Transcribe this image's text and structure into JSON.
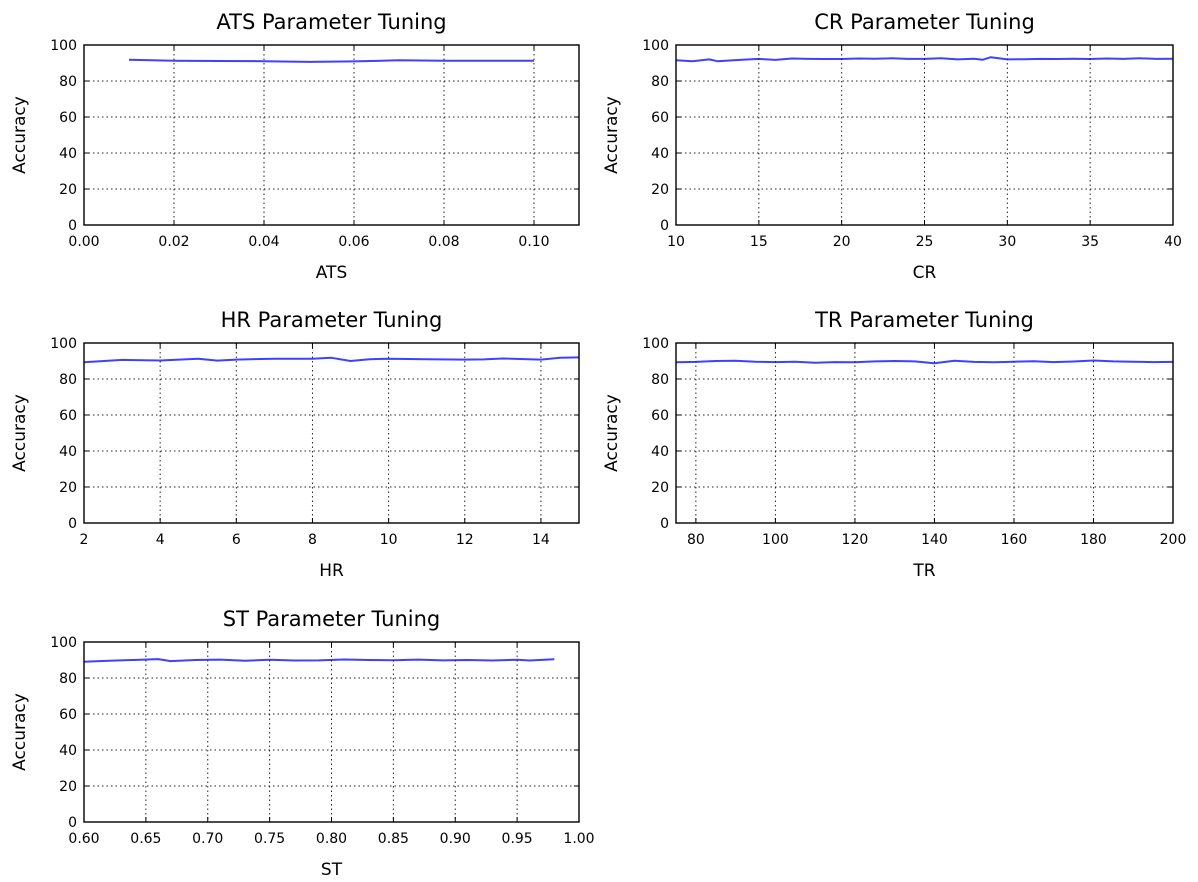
{
  "chart_data": [
    {
      "type": "line",
      "title": "ATS Parameter Tuning",
      "xlabel": "ATS",
      "ylabel": "Accuracy",
      "xlim": [
        0.0,
        0.11
      ],
      "ylim": [
        0,
        100
      ],
      "xticks": [
        0.0,
        0.02,
        0.04,
        0.06,
        0.08,
        0.1
      ],
      "xtick_labels": [
        "0.00",
        "0.02",
        "0.04",
        "0.06",
        "0.08",
        "0.10"
      ],
      "yticks": [
        0,
        20,
        40,
        60,
        80,
        100
      ],
      "ytick_labels": [
        "0",
        "20",
        "40",
        "60",
        "80",
        "100"
      ],
      "grid": true,
      "series": [
        {
          "color": "#0000ff",
          "x": [
            0.01,
            0.02,
            0.03,
            0.04,
            0.05,
            0.06,
            0.07,
            0.08,
            0.09,
            0.1
          ],
          "y": [
            91.8,
            91.3,
            91.1,
            91.0,
            90.6,
            90.9,
            91.5,
            91.2,
            91.3,
            91.2
          ]
        }
      ]
    },
    {
      "type": "line",
      "title": "CR Parameter Tuning",
      "xlabel": "CR",
      "ylabel": "Accuracy",
      "xlim": [
        10,
        40
      ],
      "ylim": [
        0,
        100
      ],
      "xticks": [
        10,
        15,
        20,
        25,
        30,
        35,
        40
      ],
      "xtick_labels": [
        "10",
        "15",
        "20",
        "25",
        "30",
        "35",
        "40"
      ],
      "yticks": [
        0,
        20,
        40,
        60,
        80,
        100
      ],
      "ytick_labels": [
        "0",
        "20",
        "40",
        "60",
        "80",
        "100"
      ],
      "grid": true,
      "series": [
        {
          "color": "#0000ff",
          "x": [
            10,
            11,
            12,
            12.5,
            13,
            14,
            15,
            16,
            17,
            18,
            19,
            20,
            21,
            22,
            23,
            24,
            25,
            26,
            27,
            28,
            28.5,
            29,
            30,
            31,
            32,
            33,
            34,
            35,
            36,
            37,
            38,
            39,
            40
          ],
          "y": [
            91.5,
            91.0,
            92.0,
            91.0,
            91.2,
            91.8,
            92.3,
            91.7,
            92.5,
            92.3,
            92.2,
            92.2,
            92.5,
            92.4,
            92.6,
            92.3,
            92.3,
            92.6,
            92.0,
            92.4,
            91.8,
            93.2,
            92.0,
            92.1,
            92.3,
            92.2,
            92.4,
            92.2,
            92.5,
            92.3,
            92.6,
            92.3,
            92.4
          ]
        }
      ]
    },
    {
      "type": "line",
      "title": "HR Parameter Tuning",
      "xlabel": "HR",
      "ylabel": "Accuracy",
      "xlim": [
        2,
        15
      ],
      "ylim": [
        0,
        100
      ],
      "xticks": [
        2,
        4,
        6,
        8,
        10,
        12,
        14
      ],
      "xtick_labels": [
        "2",
        "4",
        "6",
        "8",
        "10",
        "12",
        "14"
      ],
      "yticks": [
        0,
        20,
        40,
        60,
        80,
        100
      ],
      "ytick_labels": [
        "0",
        "20",
        "40",
        "60",
        "80",
        "100"
      ],
      "grid": true,
      "series": [
        {
          "color": "#0000ff",
          "x": [
            2,
            3,
            4,
            5,
            5.5,
            6,
            7,
            8,
            8.5,
            9,
            9.5,
            10,
            11,
            12,
            12.5,
            13,
            14,
            14.5,
            15
          ],
          "y": [
            89.3,
            90.6,
            90.3,
            91.2,
            90.2,
            90.8,
            91.3,
            91.3,
            91.8,
            90.0,
            91.0,
            91.3,
            91.0,
            90.8,
            90.9,
            91.4,
            90.8,
            91.8,
            92.0
          ]
        }
      ]
    },
    {
      "type": "line",
      "title": "TR Parameter Tuning",
      "xlabel": "TR",
      "ylabel": "Accuracy",
      "xlim": [
        75,
        200
      ],
      "ylim": [
        0,
        100
      ],
      "xticks": [
        80,
        100,
        120,
        140,
        160,
        180,
        200
      ],
      "xtick_labels": [
        "80",
        "100",
        "120",
        "140",
        "160",
        "180",
        "200"
      ],
      "yticks": [
        0,
        20,
        40,
        60,
        80,
        100
      ],
      "ytick_labels": [
        "0",
        "20",
        "40",
        "60",
        "80",
        "100"
      ],
      "grid": true,
      "series": [
        {
          "color": "#0000ff",
          "x": [
            75,
            80,
            85,
            90,
            95,
            100,
            105,
            110,
            115,
            120,
            125,
            130,
            135,
            140,
            145,
            150,
            155,
            160,
            165,
            170,
            175,
            180,
            185,
            190,
            195,
            200
          ],
          "y": [
            89.3,
            89.5,
            90.0,
            90.1,
            89.6,
            89.4,
            89.6,
            89.0,
            89.4,
            89.3,
            89.8,
            90.0,
            89.8,
            88.8,
            90.1,
            89.5,
            89.3,
            89.6,
            89.9,
            89.4,
            89.7,
            90.3,
            89.8,
            89.6,
            89.4,
            89.5
          ]
        }
      ]
    },
    {
      "type": "line",
      "title": "ST Parameter Tuning",
      "xlabel": "ST",
      "ylabel": "Accuracy",
      "xlim": [
        0.6,
        1.0
      ],
      "ylim": [
        0,
        100
      ],
      "xticks": [
        0.6,
        0.65,
        0.7,
        0.75,
        0.8,
        0.85,
        0.9,
        0.95,
        1.0
      ],
      "xtick_labels": [
        "0.60",
        "0.65",
        "0.70",
        "0.75",
        "0.80",
        "0.85",
        "0.90",
        "0.95",
        "1.00"
      ],
      "yticks": [
        0,
        20,
        40,
        60,
        80,
        100
      ],
      "ytick_labels": [
        "0",
        "20",
        "40",
        "60",
        "80",
        "100"
      ],
      "grid": true,
      "series": [
        {
          "color": "#0000ff",
          "x": [
            0.6,
            0.62,
            0.64,
            0.66,
            0.67,
            0.69,
            0.71,
            0.73,
            0.75,
            0.77,
            0.79,
            0.81,
            0.83,
            0.85,
            0.87,
            0.89,
            0.91,
            0.93,
            0.95,
            0.96,
            0.98
          ],
          "y": [
            89.0,
            89.6,
            90.0,
            90.5,
            89.4,
            90.0,
            90.2,
            89.6,
            90.1,
            89.7,
            89.8,
            90.3,
            90.0,
            89.9,
            90.2,
            89.8,
            90.0,
            89.7,
            90.1,
            89.7,
            90.4
          ]
        }
      ]
    }
  ]
}
